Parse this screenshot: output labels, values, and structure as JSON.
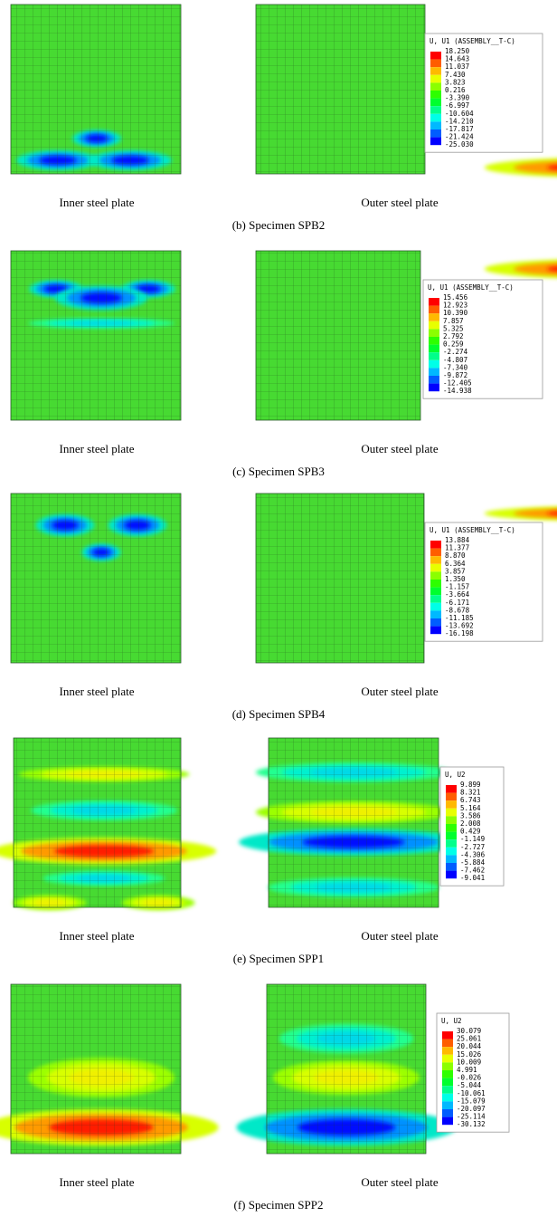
{
  "panels": [
    {
      "inner_label": "Inner steel plate",
      "outer_label": "Outer steel plate",
      "caption": "(b) Specimen SPB2",
      "legend": {
        "title": "U, U1 (ASSEMBLY__T-C)",
        "values": [
          "18.250",
          "14.643",
          "11.037",
          "7.430",
          "3.823",
          "0.216",
          "-3.390",
          "-6.997",
          "-10.604",
          "-14.210",
          "-17.817",
          "-21.424",
          "-25.030"
        ]
      }
    },
    {
      "inner_label": "Inner steel plate",
      "outer_label": "Outer steel plate",
      "caption": "(c) Specimen SPB3",
      "legend": {
        "title": "U, U1 (ASSEMBLY__T-C)",
        "values": [
          "15.456",
          "12.923",
          "10.390",
          "7.857",
          "5.325",
          "2.792",
          "0.259",
          "-2.274",
          "-4.807",
          "-7.340",
          "-9.872",
          "-12.405",
          "-14.938"
        ]
      }
    },
    {
      "inner_label": "Inner steel plate",
      "outer_label": "Outer steel plate",
      "caption": "(d) Specimen SPB4",
      "legend": {
        "title": "U, U1 (ASSEMBLY__T-C)",
        "values": [
          "13.884",
          "11.377",
          "8.870",
          "6.364",
          "3.857",
          "1.350",
          "-1.157",
          "-3.664",
          "-6.171",
          "-8.678",
          "-11.185",
          "-13.692",
          "-16.198"
        ]
      }
    },
    {
      "inner_label": "Inner steel plate",
      "outer_label": "Outer steel plate",
      "caption": "(e) Specimen SPP1",
      "legend": {
        "title": "U, U2",
        "values": [
          "9.899",
          "8.321",
          "6.743",
          "5.164",
          "3.586",
          "2.008",
          "0.429",
          "-1.149",
          "-2.727",
          "-4.306",
          "-5.884",
          "-7.462",
          "-9.041"
        ]
      }
    },
    {
      "inner_label": "Inner steel plate",
      "outer_label": "Outer steel plate",
      "caption": "(f) Specimen SPP2",
      "legend": {
        "title": "U, U2",
        "values": [
          "30.079",
          "25.061",
          "20.044",
          "15.026",
          "10.009",
          "4.991",
          "-0.026",
          "-5.044",
          "-10.061",
          "-15.079",
          "-20.097",
          "-25.114",
          "-30.132"
        ]
      }
    }
  ]
}
